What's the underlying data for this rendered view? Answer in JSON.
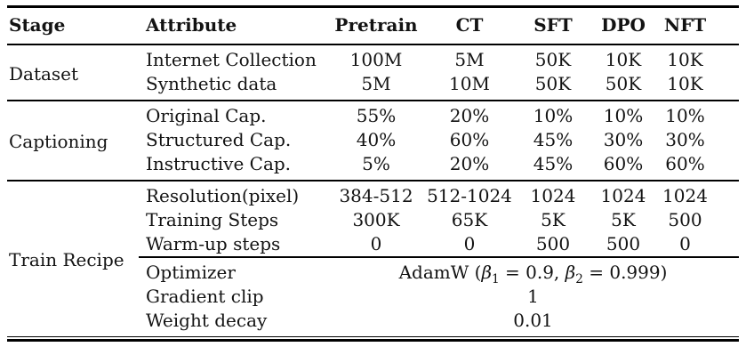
{
  "colors": {
    "background": "#ffffff",
    "text": "#131313",
    "rule": "#000000"
  },
  "table": {
    "columns": [
      "Stage",
      "Attribute",
      "Pretrain",
      "CT",
      "SFT",
      "DPO",
      "NFT"
    ],
    "sections": [
      {
        "stage": "Dataset",
        "rows": [
          {
            "attribute": "Internet Collection",
            "values": [
              "100M",
              "5M",
              "50K",
              "10K",
              "10K"
            ]
          },
          {
            "attribute": "Synthetic data",
            "values": [
              "5M",
              "10M",
              "50K",
              "50K",
              "10K"
            ]
          }
        ]
      },
      {
        "stage": "Captioning",
        "rows": [
          {
            "attribute": "Original Cap.",
            "values": [
              "55%",
              "20%",
              "10%",
              "10%",
              "10%"
            ]
          },
          {
            "attribute": "Structured Cap.",
            "values": [
              "40%",
              "60%",
              "45%",
              "30%",
              "30%"
            ]
          },
          {
            "attribute": "Instructive Cap.",
            "values": [
              "5%",
              "20%",
              "45%",
              "60%",
              "60%"
            ]
          }
        ]
      },
      {
        "stage": "Train Recipe",
        "rows": [
          {
            "attribute": "Resolution(pixel)",
            "values": [
              "384-512",
              "512-1024",
              "1024",
              "1024",
              "1024"
            ]
          },
          {
            "attribute": "Training Steps",
            "values": [
              "300K",
              "65K",
              "5K",
              "5K",
              "500"
            ]
          },
          {
            "attribute": "Warm-up steps",
            "values": [
              "0",
              "0",
              "500",
              "500",
              "0"
            ]
          }
        ],
        "spanning_rows": [
          {
            "attribute": "Optimizer",
            "value_parts": [
              "AdamW (",
              "β",
              "1",
              " = 0.9, ",
              "β",
              "2",
              " = 0.999)"
            ]
          },
          {
            "attribute": "Gradient clip",
            "value": "1"
          },
          {
            "attribute": "Weight decay",
            "value": "0.01"
          }
        ]
      }
    ]
  }
}
